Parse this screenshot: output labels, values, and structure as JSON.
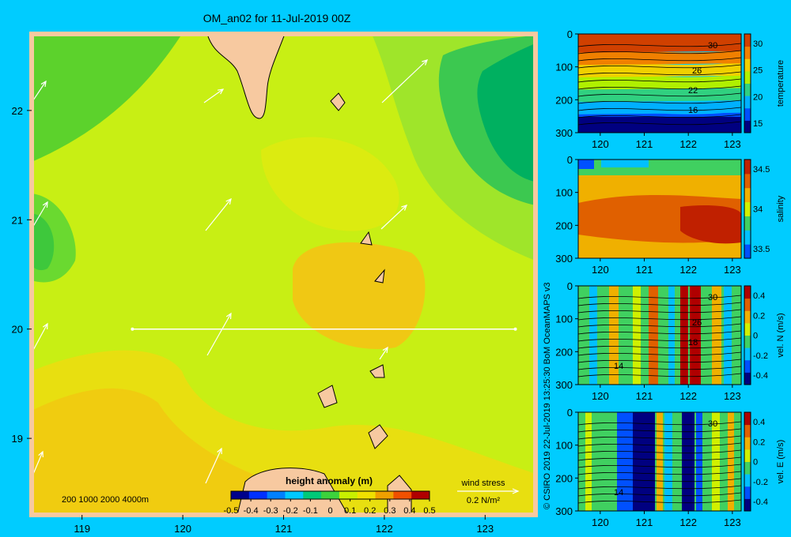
{
  "title": "OM_an02 for 11-Jul-2019 00Z",
  "credit": "© CSIRO 2019   22-Jul-2019 13:25:30 BoM OceanMAPS v3",
  "colors": {
    "background": "#00ccff",
    "land": "#f7c9a0",
    "frame": "#f7c9a0"
  },
  "map": {
    "x_ticks": [
      119,
      120,
      121,
      122,
      123
    ],
    "y_ticks": [
      19,
      20,
      21,
      22
    ],
    "xlim": [
      118.5,
      123.5
    ],
    "ylim": [
      18.3,
      22.7
    ],
    "depth_legend": "200  1000  2000  4000m",
    "section_line": {
      "lon": [
        119.5,
        123.3
      ],
      "lat": 20.0
    },
    "colorbar": {
      "label": "height anomaly  (m)",
      "ticks": [
        "-0.5",
        "-0.4",
        "-0.3",
        "-0.2",
        "-0.1",
        "0",
        "0.1",
        "0.2",
        "0.3",
        "0.4",
        "0.5"
      ],
      "colors": [
        "#00008b",
        "#0030ff",
        "#0080ff",
        "#00c8ff",
        "#00c878",
        "#3cd23c",
        "#c8f000",
        "#f0e000",
        "#f0a000",
        "#f05000",
        "#b00000"
      ]
    },
    "wind_stress": {
      "label": "wind stress",
      "unit": "0.2 N/m²"
    }
  },
  "sections": [
    {
      "variable": "temperature",
      "x_ticks": [
        120,
        121,
        122,
        123
      ],
      "y_ticks": [
        0,
        100,
        200,
        300
      ],
      "colorbar_ticks": [
        "30",
        "25",
        "20",
        "15"
      ],
      "contour_labels": [
        "30",
        "26",
        "22",
        "16"
      ],
      "colors": [
        "#000080",
        "#0050ff",
        "#00b0ff",
        "#30d080",
        "#b0f000",
        "#f0d000",
        "#f08000",
        "#d04000"
      ]
    },
    {
      "variable": "salinity",
      "x_ticks": [
        120,
        121,
        122,
        123
      ],
      "y_ticks": [
        0,
        100,
        200,
        300
      ],
      "colorbar_ticks": [
        "34.5",
        "34",
        "33.5"
      ],
      "contour_labels": [],
      "colors": [
        "#0050ff",
        "#00c0ff",
        "#40d060",
        "#d0f000",
        "#f0b000",
        "#e06000",
        "#c02000"
      ]
    },
    {
      "variable": "vel. N  (m/s)",
      "x_ticks": [
        120,
        121,
        122,
        123
      ],
      "y_ticks": [
        0,
        100,
        200,
        300
      ],
      "colorbar_ticks": [
        "0.4",
        "0.2",
        "0",
        "-0.2",
        "-0.4"
      ],
      "contour_labels": [
        "30",
        "26",
        "18",
        "14"
      ],
      "colors": [
        "#000080",
        "#0050ff",
        "#00c0ff",
        "#40d060",
        "#d0f000",
        "#f0b000",
        "#e06000",
        "#b00000"
      ]
    },
    {
      "variable": "vel. E  (m/s)",
      "x_ticks": [
        120,
        121,
        122,
        123
      ],
      "y_ticks": [
        0,
        100,
        200,
        300
      ],
      "colorbar_ticks": [
        "0.4",
        "0.2",
        "0",
        "-0.2",
        "-0.4"
      ],
      "contour_labels": [
        "30",
        "14"
      ],
      "colors": [
        "#000080",
        "#0050ff",
        "#00c0ff",
        "#40d060",
        "#d0f000",
        "#f0b000",
        "#e06000",
        "#b00000"
      ]
    }
  ]
}
